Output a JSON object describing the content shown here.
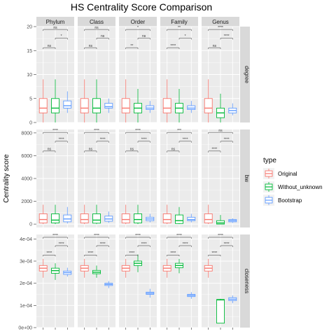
{
  "chart_data": {
    "type": "box",
    "title": "HS Centrality Score Comparison",
    "ylabel": "Centrality score",
    "xlabel": "",
    "columns": [
      "Phylum",
      "Class",
      "Order",
      "Family",
      "Genus"
    ],
    "rows": [
      {
        "name": "degree",
        "ylim": [
          0,
          20
        ],
        "ticks": [
          0,
          5,
          10,
          15,
          20
        ],
        "tick_labels": [
          "0",
          "5",
          "10",
          "15",
          "20"
        ]
      },
      {
        "name": "bw",
        "ylim": [
          -300,
          8300
        ],
        "ticks": [
          0,
          2000,
          4000,
          6000,
          8000
        ],
        "tick_labels": [
          "0",
          "2000",
          "4000",
          "6000",
          "8000"
        ]
      },
      {
        "name": "closeness",
        "ylim": [
          0,
          0.00042
        ],
        "ticks": [
          0,
          0.0001,
          0.0002,
          0.0003,
          0.0004
        ],
        "tick_labels": [
          "0e+00",
          "1e-04",
          "2e-04",
          "3e-04",
          "4e-04"
        ]
      }
    ],
    "legend": {
      "title": "type",
      "placement": "right",
      "entries": [
        {
          "name": "Original",
          "color": "#F8766D"
        },
        {
          "name": "Without_unknown",
          "color": "#00BA38"
        },
        {
          "name": "Bootstrap",
          "color": "#619CFF"
        }
      ]
    },
    "boxes": {
      "degree": {
        "Phylum": [
          [
            0,
            2,
            3,
            5,
            9
          ],
          [
            0,
            2,
            3,
            5,
            9
          ],
          [
            2,
            3,
            3.5,
            4.5,
            6.5
          ]
        ],
        "Class": [
          [
            0,
            2,
            3,
            5,
            9
          ],
          [
            0,
            2,
            3,
            5,
            9
          ],
          [
            2,
            3,
            3.3,
            4,
            5
          ]
        ],
        "Order": [
          [
            0,
            2,
            3,
            5,
            9
          ],
          [
            0,
            2,
            3,
            4,
            7
          ],
          [
            2,
            2.7,
            3,
            3.5,
            4.5
          ]
        ],
        "Family": [
          [
            0,
            2,
            3,
            5,
            9
          ],
          [
            0,
            2,
            3,
            4,
            7
          ],
          [
            2,
            2.7,
            3,
            3.5,
            4.5
          ]
        ],
        "Genus": [
          [
            0,
            2,
            3,
            5,
            9
          ],
          [
            0,
            1,
            2,
            3,
            6
          ],
          [
            1.5,
            2,
            2.5,
            3,
            4
          ]
        ]
      },
      "bw": {
        "Phylum": [
          [
            0,
            100,
            400,
            900,
            1700
          ],
          [
            0,
            100,
            350,
            900,
            1700
          ],
          [
            50,
            200,
            450,
            800,
            1500
          ]
        ],
        "Class": [
          [
            0,
            100,
            400,
            900,
            1700
          ],
          [
            0,
            80,
            350,
            900,
            1700
          ],
          [
            100,
            250,
            450,
            700,
            1100
          ]
        ],
        "Order": [
          [
            0,
            100,
            400,
            900,
            1700
          ],
          [
            0,
            100,
            400,
            900,
            1700
          ],
          [
            150,
            300,
            450,
            600,
            900
          ]
        ],
        "Family": [
          [
            0,
            100,
            400,
            900,
            1700
          ],
          [
            0,
            50,
            300,
            800,
            1500
          ],
          [
            150,
            300,
            400,
            600,
            900
          ]
        ],
        "Genus": [
          [
            0,
            100,
            400,
            900,
            1700
          ],
          [
            0,
            0,
            100,
            300,
            800
          ],
          [
            100,
            200,
            300,
            400,
            500
          ]
        ]
      },
      "closeness": {
        "Phylum": [
          [
            0.000225,
            0.000255,
            0.000268,
            0.00028,
            0.00031
          ],
          [
            0.000215,
            0.000245,
            0.000257,
            0.000268,
            0.00029
          ],
          [
            0.00023,
            0.00024,
            0.000248,
            0.000255,
            0.00027
          ]
        ],
        "Class": [
          [
            0.000225,
            0.000255,
            0.000268,
            0.00028,
            0.00031
          ],
          [
            0.000225,
            0.000243,
            0.00025,
            0.000258,
            0.00028
          ],
          [
            0.000178,
            0.00019,
            0.000195,
            0.0002,
            0.00021
          ]
        ],
        "Order": [
          [
            0.000225,
            0.000255,
            0.000268,
            0.00028,
            0.00031
          ],
          [
            0.00025,
            0.00028,
            0.00029,
            0.0003,
            0.00033
          ],
          [
            0.000135,
            0.00015,
            0.000155,
            0.00016,
            0.000175
          ]
        ],
        "Family": [
          [
            0.000225,
            0.000255,
            0.000268,
            0.00028,
            0.00031
          ],
          [
            0.000245,
            0.00027,
            0.00028,
            0.00029,
            0.00031
          ],
          [
            0.00013,
            0.00014,
            0.000145,
            0.00015,
            0.00016
          ]
        ],
        "Genus": [
          [
            0.000225,
            0.000255,
            0.000268,
            0.00028,
            0.00031
          ],
          [
            2e-05,
            2e-05,
            0.000125,
            0.000127,
            0.00013
          ],
          [
            0.00011,
            0.000122,
            0.000128,
            0.000135,
            0.000145
          ]
        ]
      }
    },
    "significance": {
      "degree": {
        "Phylum": [
          "ns",
          "*",
          "ns"
        ],
        "Class": [
          "ns",
          "ns",
          "ns"
        ],
        "Order": [
          "**",
          "ns",
          "*"
        ],
        "Family": [
          "****",
          "*",
          "**"
        ],
        "Genus": [
          "ns",
          "****",
          "****"
        ]
      },
      "bw": {
        "Phylum": [
          "ns",
          "****",
          "****"
        ],
        "Class": [
          "ns",
          "****",
          "****"
        ],
        "Order": [
          "ns",
          "****",
          "****"
        ],
        "Family": [
          "ns",
          "****",
          "***"
        ],
        "Genus": [
          "****",
          "****",
          "ns"
        ]
      },
      "closeness": {
        "Phylum": [
          "****",
          "****",
          "****"
        ],
        "Class": [
          "****",
          "****",
          "****"
        ],
        "Order": [
          "****",
          "****",
          "****"
        ],
        "Family": [
          "****",
          "****",
          "****"
        ],
        "Genus": [
          "****",
          "****",
          "****"
        ]
      }
    },
    "grid": true,
    "panel_background": "#EBEBEB",
    "strip_background": "#D9D9D9",
    "grid_color": "#FFFFFF"
  }
}
